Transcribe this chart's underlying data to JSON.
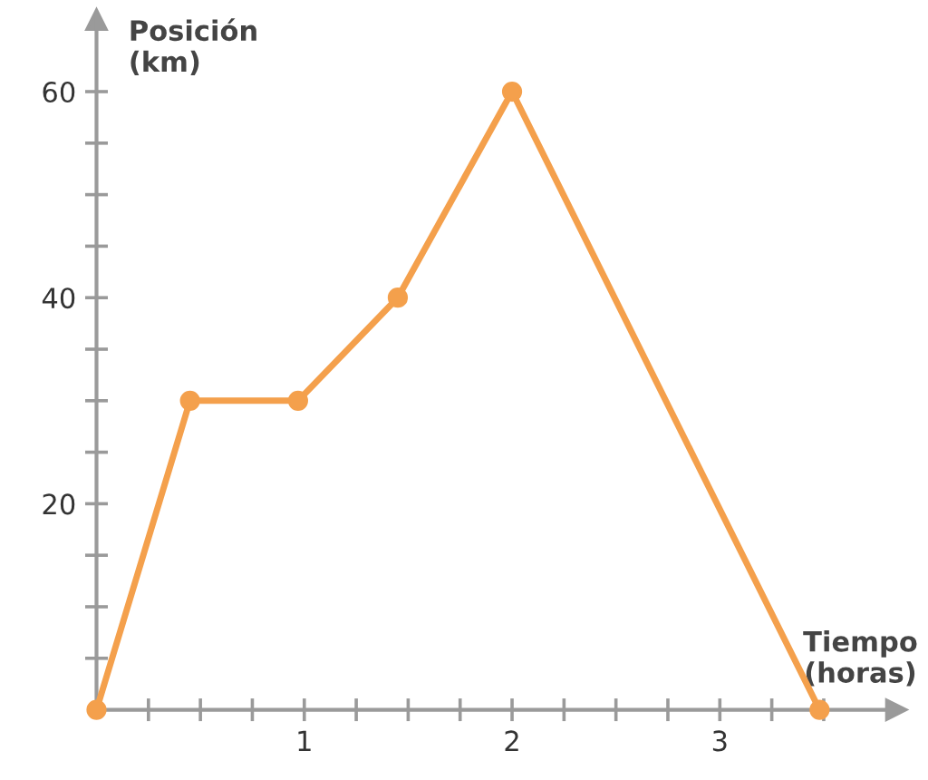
{
  "chart_data": {
    "type": "line",
    "xlabel": "Tiempo\n(horas)",
    "ylabel": "Posición\n(km)",
    "x": [
      0,
      0.45,
      0.97,
      1.45,
      2,
      3.48
    ],
    "series": [
      {
        "color": "#f4a04c",
        "values": [
          0,
          30,
          30,
          40,
          60,
          0
        ]
      }
    ],
    "xlim": [
      0,
      3.85
    ],
    "ylim": [
      0,
      67
    ],
    "xticks": [
      {
        "value": 0.25,
        "label": null
      },
      {
        "value": 0.5,
        "label": null
      },
      {
        "value": 0.75,
        "label": null
      },
      1,
      {
        "value": 1.25,
        "label": null
      },
      {
        "value": 1.5,
        "label": null
      },
      {
        "value": 1.75,
        "label": null
      },
      2,
      {
        "value": 2.25,
        "label": null
      },
      {
        "value": 2.5,
        "label": null
      },
      {
        "value": 2.75,
        "label": null
      },
      3,
      {
        "value": 3.25,
        "label": null
      },
      {
        "value": 3.5,
        "label": null
      }
    ],
    "yticks": [
      {
        "value": 5,
        "label": null
      },
      {
        "value": 10,
        "label": null
      },
      {
        "value": 15,
        "label": null
      },
      20,
      {
        "value": 25,
        "label": null
      },
      {
        "value": 30,
        "label": null
      },
      {
        "value": 35,
        "label": null
      },
      40,
      {
        "value": 45,
        "label": null
      },
      {
        "value": 50,
        "label": null
      },
      {
        "value": 55,
        "label": null
      },
      60
    ],
    "marker": "circle",
    "line_style": "solid",
    "grid": false,
    "legend": false
  }
}
